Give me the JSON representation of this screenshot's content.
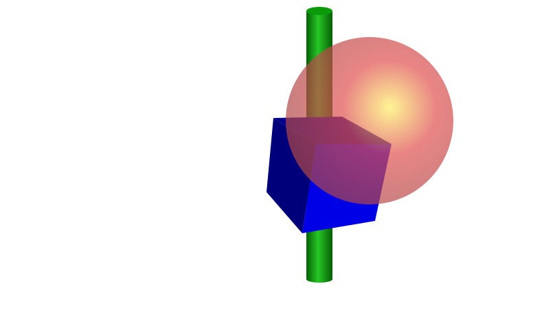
{
  "scene": {
    "background_color": "#ffffff",
    "objects": [
      {
        "kind": "cylinder",
        "color": "#0a9a0a",
        "shade_color": "#055f05",
        "highlight_color": "#27c727",
        "opacity": 1.0
      },
      {
        "kind": "sphere",
        "color": "#e05050",
        "highlight_color": "#fff066",
        "opacity": 0.7
      },
      {
        "kind": "cube",
        "front_color": "#0000e6",
        "side_color": "#00007a",
        "top_color": "#00008c",
        "opacity": 1.0
      }
    ]
  }
}
